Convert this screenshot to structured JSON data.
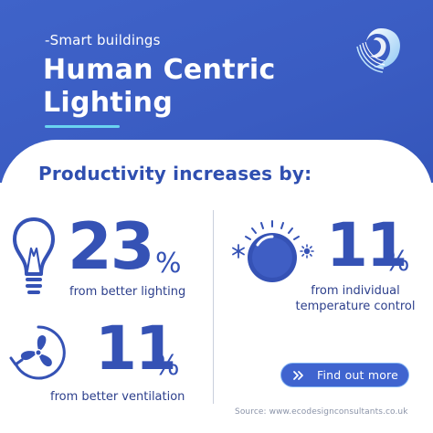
{
  "header": {
    "subtitle": "-Smart buildings",
    "title": "Human Centric Lighting"
  },
  "headline": "Productivity increases by:",
  "stats": [
    {
      "number": "23",
      "unit": "%",
      "description": "from better lighting",
      "icon": "lightbulb-icon"
    },
    {
      "number": "11",
      "unit": "%",
      "description": "from individual temperature control",
      "icon": "thermostat-icon"
    },
    {
      "number": "11",
      "unit": "%",
      "description": "from better ventilation",
      "icon": "fan-icon"
    }
  ],
  "cta": {
    "label": "Find out more",
    "icon": "double-chevron-right-icon"
  },
  "source": "Source: www.ecodesignconsultants.co.uk",
  "colors": {
    "header_blue": "#3f63c9",
    "accent_dark_blue": "#3552b5",
    "accent_cyan": "#6ad3f0",
    "button_blue": "#3f64cf"
  }
}
